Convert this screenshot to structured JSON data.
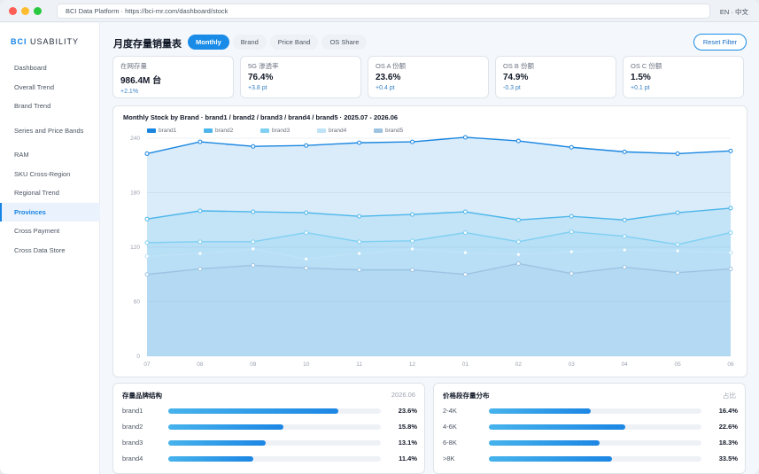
{
  "window": {
    "url": "BCI Data Platform · https://bci-mr.com/dashboard/stock",
    "lang": "EN · 中文"
  },
  "sidebar": {
    "brand_prefix": "BCI",
    "brand_suffix": "USABILITY",
    "items": [
      {
        "label": "Dashboard"
      },
      {
        "label": "Overall Trend"
      },
      {
        "label": "Brand Trend"
      },
      {
        "label": "Series and Price Bands"
      },
      {
        "label": "RAM"
      },
      {
        "label": "SKU Cross-Region"
      },
      {
        "label": "Regional Trend"
      },
      {
        "label": "Provinces"
      },
      {
        "label": "Cross Payment"
      },
      {
        "label": "Cross Data Store"
      }
    ],
    "active_index": 7
  },
  "header": {
    "title": "月度存量销量表",
    "tabs": [
      "Monthly",
      "Brand",
      "Price Band",
      "OS Share"
    ],
    "active_tab": 0,
    "reset_label": "Reset Filter"
  },
  "kpis": [
    {
      "label": "在网存量",
      "value": "986.4M 台",
      "delta": "+2.1%"
    },
    {
      "label": "5G 渗透率",
      "value": "76.4%",
      "delta": "+3.8 pt"
    },
    {
      "label": "OS A 份额",
      "value": "23.6%",
      "delta": "+0.4 pt"
    },
    {
      "label": "OS B 份额",
      "value": "74.9%",
      "delta": "-0.3 pt"
    },
    {
      "label": "OS C 份额",
      "value": "1.5%",
      "delta": "+0.1 pt"
    }
  ],
  "chart_data": {
    "type": "area",
    "title": "Monthly Stock by Brand · brand1 / brand2 / brand3 / brand4 / brand5 · 2025.07 - 2026.06",
    "categories": [
      "07",
      "08",
      "09",
      "10",
      "11",
      "12",
      "01",
      "02",
      "03",
      "04",
      "05",
      "06"
    ],
    "ylim": [
      0,
      240
    ],
    "yticks": [
      0,
      60,
      120,
      180,
      240
    ],
    "grid": true,
    "legend_position": "top-left",
    "series": [
      {
        "name": "brand1",
        "color": "#1a86e0",
        "values": [
          223,
          236,
          231,
          232,
          235,
          236,
          241,
          237,
          230,
          225,
          223,
          226
        ]
      },
      {
        "name": "brand2",
        "color": "#4cb6ea",
        "values": [
          151,
          160,
          159,
          158,
          154,
          156,
          159,
          150,
          154,
          150,
          158,
          163
        ]
      },
      {
        "name": "brand3",
        "color": "#7fd0f2",
        "values": [
          125,
          126,
          126,
          136,
          126,
          127,
          136,
          126,
          137,
          132,
          123,
          136
        ]
      },
      {
        "name": "brand4",
        "color": "#bfe3f7",
        "values": [
          110,
          113,
          118,
          107,
          113,
          118,
          114,
          112,
          115,
          117,
          116,
          114
        ]
      },
      {
        "name": "brand5",
        "color": "#9dc3e3",
        "values": [
          90,
          96,
          100,
          97,
          95,
          95,
          90,
          102,
          91,
          98,
          92,
          96
        ]
      }
    ]
  },
  "brand_structure": {
    "title": "存量品牌结构",
    "meta": "2026.06",
    "rows": [
      {
        "label": "brand1",
        "value": "23.6%",
        "fill": 0.8
      },
      {
        "label": "brand2",
        "value": "15.8%",
        "fill": 0.54
      },
      {
        "label": "brand3",
        "value": "13.1%",
        "fill": 0.46
      },
      {
        "label": "brand4",
        "value": "11.4%",
        "fill": 0.4
      }
    ]
  },
  "price_distribution": {
    "title": "价格段存量分布",
    "meta": "占比",
    "rows": [
      {
        "label": "2-4K",
        "value": "16.4%",
        "fill": 0.48
      },
      {
        "label": "4-6K",
        "value": "22.6%",
        "fill": 0.64
      },
      {
        "label": "6-8K",
        "value": "18.3%",
        "fill": 0.52
      },
      {
        "label": ">8K",
        "value": "33.5%",
        "fill": 0.58
      }
    ]
  }
}
